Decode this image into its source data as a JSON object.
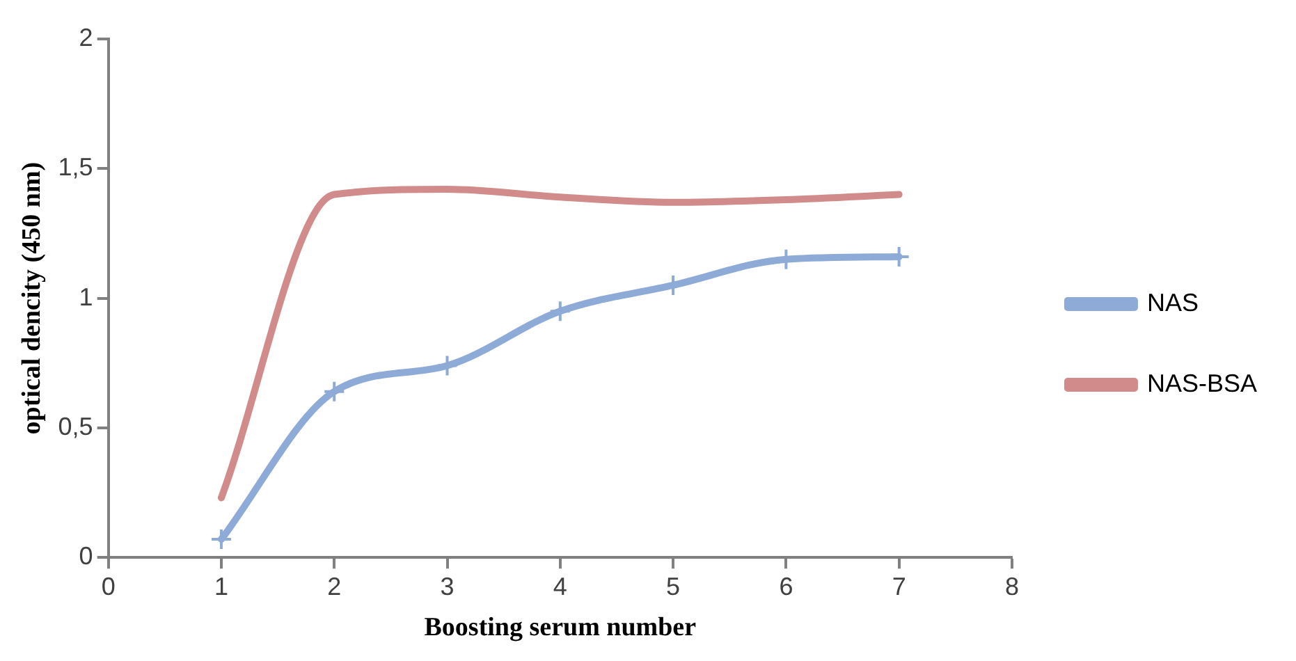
{
  "chart_data": {
    "type": "line",
    "xlabel": "Boosting serum number",
    "ylabel": "optical dencity (450 nm)",
    "x": [
      1,
      2,
      3,
      4,
      5,
      6,
      7
    ],
    "series": [
      {
        "name": "NAS",
        "color": "#8eaad6",
        "values": [
          0.07,
          0.64,
          0.74,
          0.95,
          1.05,
          1.15,
          1.16
        ],
        "marker": "cross"
      },
      {
        "name": "NAS-BSA",
        "color": "#d08b8a",
        "values": [
          0.23,
          1.4,
          1.42,
          1.39,
          1.37,
          1.38,
          1.4
        ],
        "marker": "none"
      }
    ],
    "xlim": [
      0,
      8
    ],
    "xticks": [
      0,
      1,
      2,
      3,
      4,
      5,
      6,
      7,
      8
    ],
    "ylim": [
      0,
      2
    ],
    "yticks": [
      0,
      {
        "value": 0.5,
        "label": "0,5"
      },
      1,
      {
        "value": 1.5,
        "label": "1,5"
      },
      2
    ],
    "grid": false,
    "legend": "right"
  }
}
